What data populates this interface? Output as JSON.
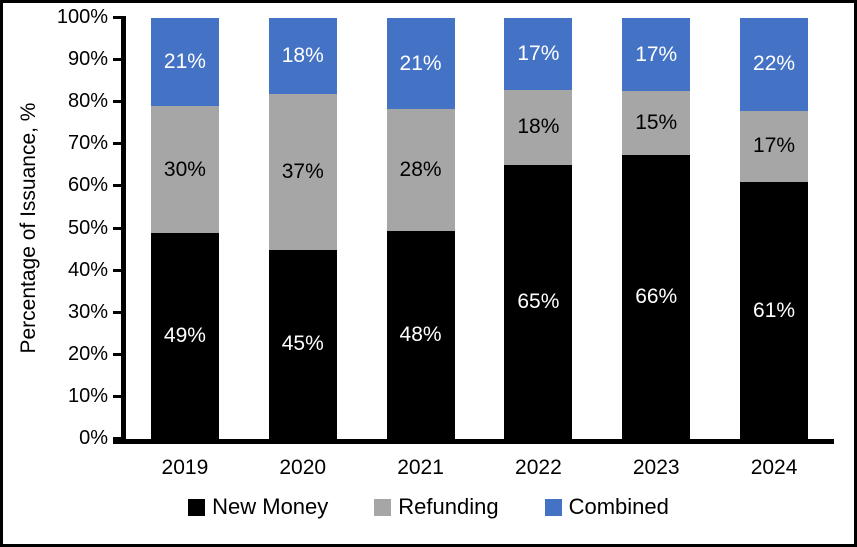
{
  "colors": {
    "new_money": "#000000",
    "refunding": "#A6A6A6",
    "combined": "#4472C4",
    "axis": "#000000",
    "background": "#FFFFFF"
  },
  "chart_data": {
    "type": "bar",
    "subtype": "stacked-100-percent",
    "title": "",
    "xlabel": "",
    "ylabel": "Percentage of Issuance, %",
    "ylim": [
      0,
      100
    ],
    "grid": false,
    "legend_position": "bottom",
    "ytick_labels": [
      "0%",
      "10%",
      "20%",
      "30%",
      "40%",
      "50%",
      "60%",
      "70%",
      "80%",
      "90%",
      "100%"
    ],
    "categories": [
      "2019",
      "2020",
      "2021",
      "2022",
      "2023",
      "2024"
    ],
    "series": [
      {
        "name": "New Money",
        "color": "#000000",
        "label_color": "#FFFFFF",
        "values": [
          49,
          45,
          48,
          65,
          66,
          61
        ],
        "labels": [
          "49%",
          "45%",
          "48%",
          "65%",
          "66%",
          "61%"
        ]
      },
      {
        "name": "Refunding",
        "color": "#A6A6A6",
        "label_color": "#000000",
        "values": [
          30,
          37,
          28,
          18,
          15,
          17
        ],
        "labels": [
          "30%",
          "37%",
          "28%",
          "18%",
          "15%",
          "17%"
        ]
      },
      {
        "name": "Combined",
        "color": "#4472C4",
        "label_color": "#FFFFFF",
        "values": [
          21,
          18,
          21,
          17,
          17,
          22
        ],
        "labels": [
          "21%",
          "18%",
          "21%",
          "17%",
          "17%",
          "22%"
        ]
      }
    ]
  }
}
